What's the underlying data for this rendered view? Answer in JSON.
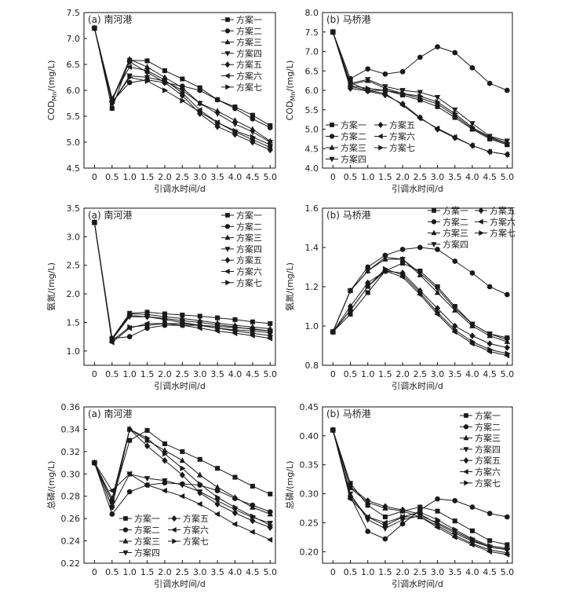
{
  "xlabel": "引调水时间/d",
  "scheme_names": [
    "方案一",
    "方案二",
    "方案三",
    "方案四",
    "方案五",
    "方案六",
    "方案七"
  ],
  "markers": [
    "square",
    "circle",
    "triangle-up",
    "triangle-down",
    "diamond",
    "triangle-left",
    "triangle-right"
  ],
  "x": [
    0,
    0.5,
    1.0,
    1.5,
    2.0,
    2.5,
    3.0,
    3.5,
    4.0,
    4.5,
    5.0
  ],
  "x_ticks": [
    "0",
    "0.5",
    "1.0",
    "1.5",
    "2.0",
    "2.5",
    "3.0",
    "3.5",
    "4.0",
    "4.5",
    "5.0"
  ],
  "chart_data": [
    {
      "type": "line",
      "title": "(a) 南河港",
      "xlabel": "引调水时间/d",
      "ylabel": "COD_Mn/(mg/L)",
      "ylim": [
        4.5,
        7.5
      ],
      "yticks": [
        "4.5",
        "5.0",
        "5.5",
        "6.0",
        "6.5",
        "7.0",
        "7.5"
      ],
      "legend": "top-right",
      "series": [
        {
          "name": "方案一",
          "values": [
            7.2,
            5.65,
            6.58,
            6.57,
            6.38,
            6.22,
            6.05,
            5.82,
            5.68,
            5.52,
            5.32
          ]
        },
        {
          "name": "方案二",
          "values": [
            7.2,
            5.78,
            6.15,
            6.2,
            6.15,
            6.08,
            6.0,
            5.82,
            5.65,
            5.45,
            5.28
          ]
        },
        {
          "name": "方案三",
          "values": [
            7.2,
            5.82,
            6.6,
            6.45,
            6.25,
            6.05,
            5.75,
            5.6,
            5.42,
            5.25,
            5.02
          ]
        },
        {
          "name": "方案四",
          "values": [
            7.2,
            5.75,
            6.28,
            6.25,
            6.18,
            6.0,
            5.75,
            5.55,
            5.35,
            5.2,
            5.0
          ]
        },
        {
          "name": "方案五",
          "values": [
            7.2,
            5.8,
            6.55,
            6.35,
            6.15,
            5.9,
            5.55,
            5.3,
            5.15,
            5.0,
            4.85
          ]
        },
        {
          "name": "方案六",
          "values": [
            7.2,
            5.85,
            6.45,
            6.38,
            6.2,
            5.95,
            5.62,
            5.38,
            5.2,
            5.05,
            4.9
          ]
        },
        {
          "name": "方案七",
          "values": [
            7.2,
            5.75,
            6.25,
            6.18,
            6.0,
            5.8,
            5.58,
            5.38,
            5.22,
            5.1,
            4.95
          ]
        }
      ]
    },
    {
      "type": "line",
      "title": "(b) 马桥港",
      "xlabel": "引调水时间/d",
      "ylabel": "COD_Mn/(mg/L)",
      "ylim": [
        4.0,
        8.0
      ],
      "yticks": [
        "4.0",
        "4.5",
        "5.0",
        "5.5",
        "6.0",
        "6.5",
        "7.0",
        "7.5",
        "8.0"
      ],
      "legend": "bottom-left",
      "series": [
        {
          "name": "方案一",
          "values": [
            7.5,
            6.2,
            6.0,
            6.0,
            5.88,
            5.75,
            5.58,
            5.3,
            5.0,
            4.75,
            4.6
          ]
        },
        {
          "name": "方案二",
          "values": [
            7.5,
            6.3,
            6.55,
            6.42,
            6.48,
            6.85,
            7.12,
            6.97,
            6.58,
            6.18,
            6.0
          ]
        },
        {
          "name": "方案三",
          "values": [
            7.5,
            6.15,
            6.25,
            6.05,
            5.92,
            5.8,
            5.65,
            5.35,
            5.02,
            4.78,
            4.62
          ]
        },
        {
          "name": "方案四",
          "values": [
            7.5,
            6.18,
            6.28,
            6.1,
            6.0,
            5.95,
            5.82,
            5.5,
            5.15,
            4.82,
            4.7
          ]
        },
        {
          "name": "方案五",
          "values": [
            7.5,
            6.05,
            5.98,
            5.88,
            5.65,
            5.3,
            5.0,
            4.78,
            4.58,
            4.42,
            4.35
          ]
        },
        {
          "name": "方案六",
          "values": [
            7.5,
            6.1,
            6.0,
            5.92,
            5.62,
            5.28,
            5.02,
            4.8,
            4.58,
            4.42,
            4.35
          ]
        },
        {
          "name": "方案七",
          "values": [
            7.5,
            6.12,
            6.05,
            6.0,
            5.92,
            5.85,
            5.7,
            5.4,
            5.05,
            4.8,
            4.65
          ]
        }
      ]
    },
    {
      "type": "line",
      "title": "(a) 南河港",
      "xlabel": "引调水时间/d",
      "ylabel": "氨氮/(mg/L)",
      "ylim": [
        0.75,
        3.5
      ],
      "yticks": [
        "1.0",
        "1.5",
        "2.0",
        "2.5",
        "3.0",
        "3.5"
      ],
      "legend": "top-right",
      "series": [
        {
          "name": "方案一",
          "values": [
            3.25,
            1.22,
            1.66,
            1.68,
            1.65,
            1.63,
            1.61,
            1.58,
            1.55,
            1.51,
            1.48
          ]
        },
        {
          "name": "方案二",
          "values": [
            3.25,
            1.22,
            1.25,
            1.4,
            1.45,
            1.45,
            1.45,
            1.43,
            1.41,
            1.39,
            1.35
          ]
        },
        {
          "name": "方案三",
          "values": [
            3.25,
            1.2,
            1.65,
            1.64,
            1.6,
            1.57,
            1.53,
            1.49,
            1.45,
            1.42,
            1.39
          ]
        },
        {
          "name": "方案四",
          "values": [
            3.25,
            1.2,
            1.6,
            1.6,
            1.57,
            1.53,
            1.5,
            1.46,
            1.42,
            1.38,
            1.35
          ]
        },
        {
          "name": "方案五",
          "values": [
            3.25,
            1.2,
            1.62,
            1.6,
            1.55,
            1.5,
            1.45,
            1.4,
            1.37,
            1.35,
            1.32
          ]
        },
        {
          "name": "方案六",
          "values": [
            3.25,
            1.15,
            1.4,
            1.48,
            1.48,
            1.45,
            1.4,
            1.35,
            1.31,
            1.27,
            1.22
          ]
        },
        {
          "name": "方案七",
          "values": [
            3.25,
            1.18,
            1.42,
            1.45,
            1.48,
            1.48,
            1.45,
            1.4,
            1.35,
            1.31,
            1.27
          ]
        }
      ]
    },
    {
      "type": "line",
      "title": "(b) 马桥港",
      "xlabel": "引调水时间/d",
      "ylabel": "氨氮/(mg/L)",
      "ylim": [
        0.8,
        1.6
      ],
      "yticks": [
        "0.8",
        "1.0",
        "1.2",
        "1.4",
        "1.6"
      ],
      "legend": "top-right",
      "series": [
        {
          "name": "方案一",
          "values": [
            0.97,
            1.06,
            1.17,
            1.28,
            1.32,
            1.28,
            1.2,
            1.1,
            1.01,
            0.96,
            0.94
          ]
        },
        {
          "name": "方案二",
          "values": [
            0.97,
            1.18,
            1.3,
            1.36,
            1.39,
            1.4,
            1.39,
            1.33,
            1.27,
            1.2,
            1.16
          ]
        },
        {
          "name": "方案三",
          "values": [
            0.97,
            1.18,
            1.28,
            1.34,
            1.34,
            1.26,
            1.17,
            1.08,
            1.0,
            0.95,
            0.92
          ]
        },
        {
          "name": "方案四",
          "values": [
            0.97,
            1.18,
            1.28,
            1.35,
            1.34,
            1.27,
            1.19,
            1.09,
            1.01,
            0.96,
            0.93
          ]
        },
        {
          "name": "方案五",
          "values": [
            0.97,
            1.1,
            1.22,
            1.28,
            1.27,
            1.18,
            1.09,
            1.0,
            0.95,
            0.91,
            0.89
          ]
        },
        {
          "name": "方案六",
          "values": [
            0.97,
            1.08,
            1.2,
            1.28,
            1.25,
            1.16,
            1.06,
            0.97,
            0.91,
            0.87,
            0.85
          ]
        },
        {
          "name": "方案七",
          "values": [
            0.97,
            1.08,
            1.2,
            1.29,
            1.26,
            1.17,
            1.07,
            0.98,
            0.92,
            0.88,
            0.86
          ]
        }
      ]
    },
    {
      "type": "line",
      "title": "(a) 南河港",
      "xlabel": "引调水时间/d",
      "ylabel": "总磷/(mg/L)",
      "ylim": [
        0.22,
        0.36
      ],
      "yticks": [
        "0.22",
        "0.24",
        "0.26",
        "0.28",
        "0.30",
        "0.32",
        "0.34",
        "0.36"
      ],
      "legend": "bottom-left",
      "series": [
        {
          "name": "方案一",
          "values": [
            0.31,
            0.275,
            0.33,
            0.339,
            0.327,
            0.32,
            0.313,
            0.305,
            0.297,
            0.289,
            0.282
          ]
        },
        {
          "name": "方案二",
          "values": [
            0.31,
            0.264,
            0.284,
            0.29,
            0.292,
            0.291,
            0.29,
            0.285,
            0.278,
            0.272,
            0.266
          ]
        },
        {
          "name": "方案三",
          "values": [
            0.31,
            0.278,
            0.34,
            0.33,
            0.321,
            0.312,
            0.299,
            0.288,
            0.279,
            0.27,
            0.264
          ]
        },
        {
          "name": "方案四",
          "values": [
            0.31,
            0.27,
            0.3,
            0.296,
            0.294,
            0.29,
            0.284,
            0.276,
            0.268,
            0.261,
            0.256
          ]
        },
        {
          "name": "方案五",
          "values": [
            0.31,
            0.27,
            0.34,
            0.325,
            0.312,
            0.299,
            0.283,
            0.273,
            0.265,
            0.258,
            0.252
          ]
        },
        {
          "name": "方案六",
          "values": [
            0.31,
            0.285,
            0.3,
            0.29,
            0.285,
            0.28,
            0.273,
            0.264,
            0.255,
            0.248,
            0.241
          ]
        },
        {
          "name": "方案七",
          "values": [
            0.31,
            0.275,
            0.34,
            0.332,
            0.318,
            0.305,
            0.291,
            0.279,
            0.27,
            0.262,
            0.254
          ]
        }
      ]
    },
    {
      "type": "line",
      "title": "(b) 马桥港",
      "xlabel": "引调水时间/d",
      "ylabel": "总磷/(mg/L)",
      "ylim": [
        0.18,
        0.45
      ],
      "yticks": [
        "0.20",
        "0.25",
        "0.30",
        "0.35",
        "0.40",
        "0.45"
      ],
      "legend": "top-right",
      "series": [
        {
          "name": "方案一",
          "values": [
            0.41,
            0.318,
            0.28,
            0.26,
            0.27,
            0.277,
            0.27,
            0.253,
            0.236,
            0.219,
            0.212
          ]
        },
        {
          "name": "方案二",
          "values": [
            0.41,
            0.295,
            0.235,
            0.222,
            0.248,
            0.272,
            0.291,
            0.288,
            0.277,
            0.266,
            0.26
          ]
        },
        {
          "name": "方案三",
          "values": [
            0.41,
            0.31,
            0.285,
            0.275,
            0.27,
            0.26,
            0.245,
            0.228,
            0.214,
            0.203,
            0.198
          ]
        },
        {
          "name": "方案四",
          "values": [
            0.41,
            0.3,
            0.255,
            0.24,
            0.255,
            0.262,
            0.25,
            0.235,
            0.22,
            0.208,
            0.203
          ]
        },
        {
          "name": "方案五",
          "values": [
            0.41,
            0.312,
            0.288,
            0.278,
            0.272,
            0.265,
            0.248,
            0.232,
            0.218,
            0.208,
            0.204
          ]
        },
        {
          "name": "方案六",
          "values": [
            0.41,
            0.291,
            0.26,
            0.25,
            0.26,
            0.26,
            0.242,
            0.225,
            0.212,
            0.2,
            0.195
          ]
        },
        {
          "name": "方案七",
          "values": [
            0.41,
            0.295,
            0.26,
            0.245,
            0.26,
            0.268,
            0.255,
            0.238,
            0.222,
            0.21,
            0.206
          ]
        }
      ]
    }
  ]
}
